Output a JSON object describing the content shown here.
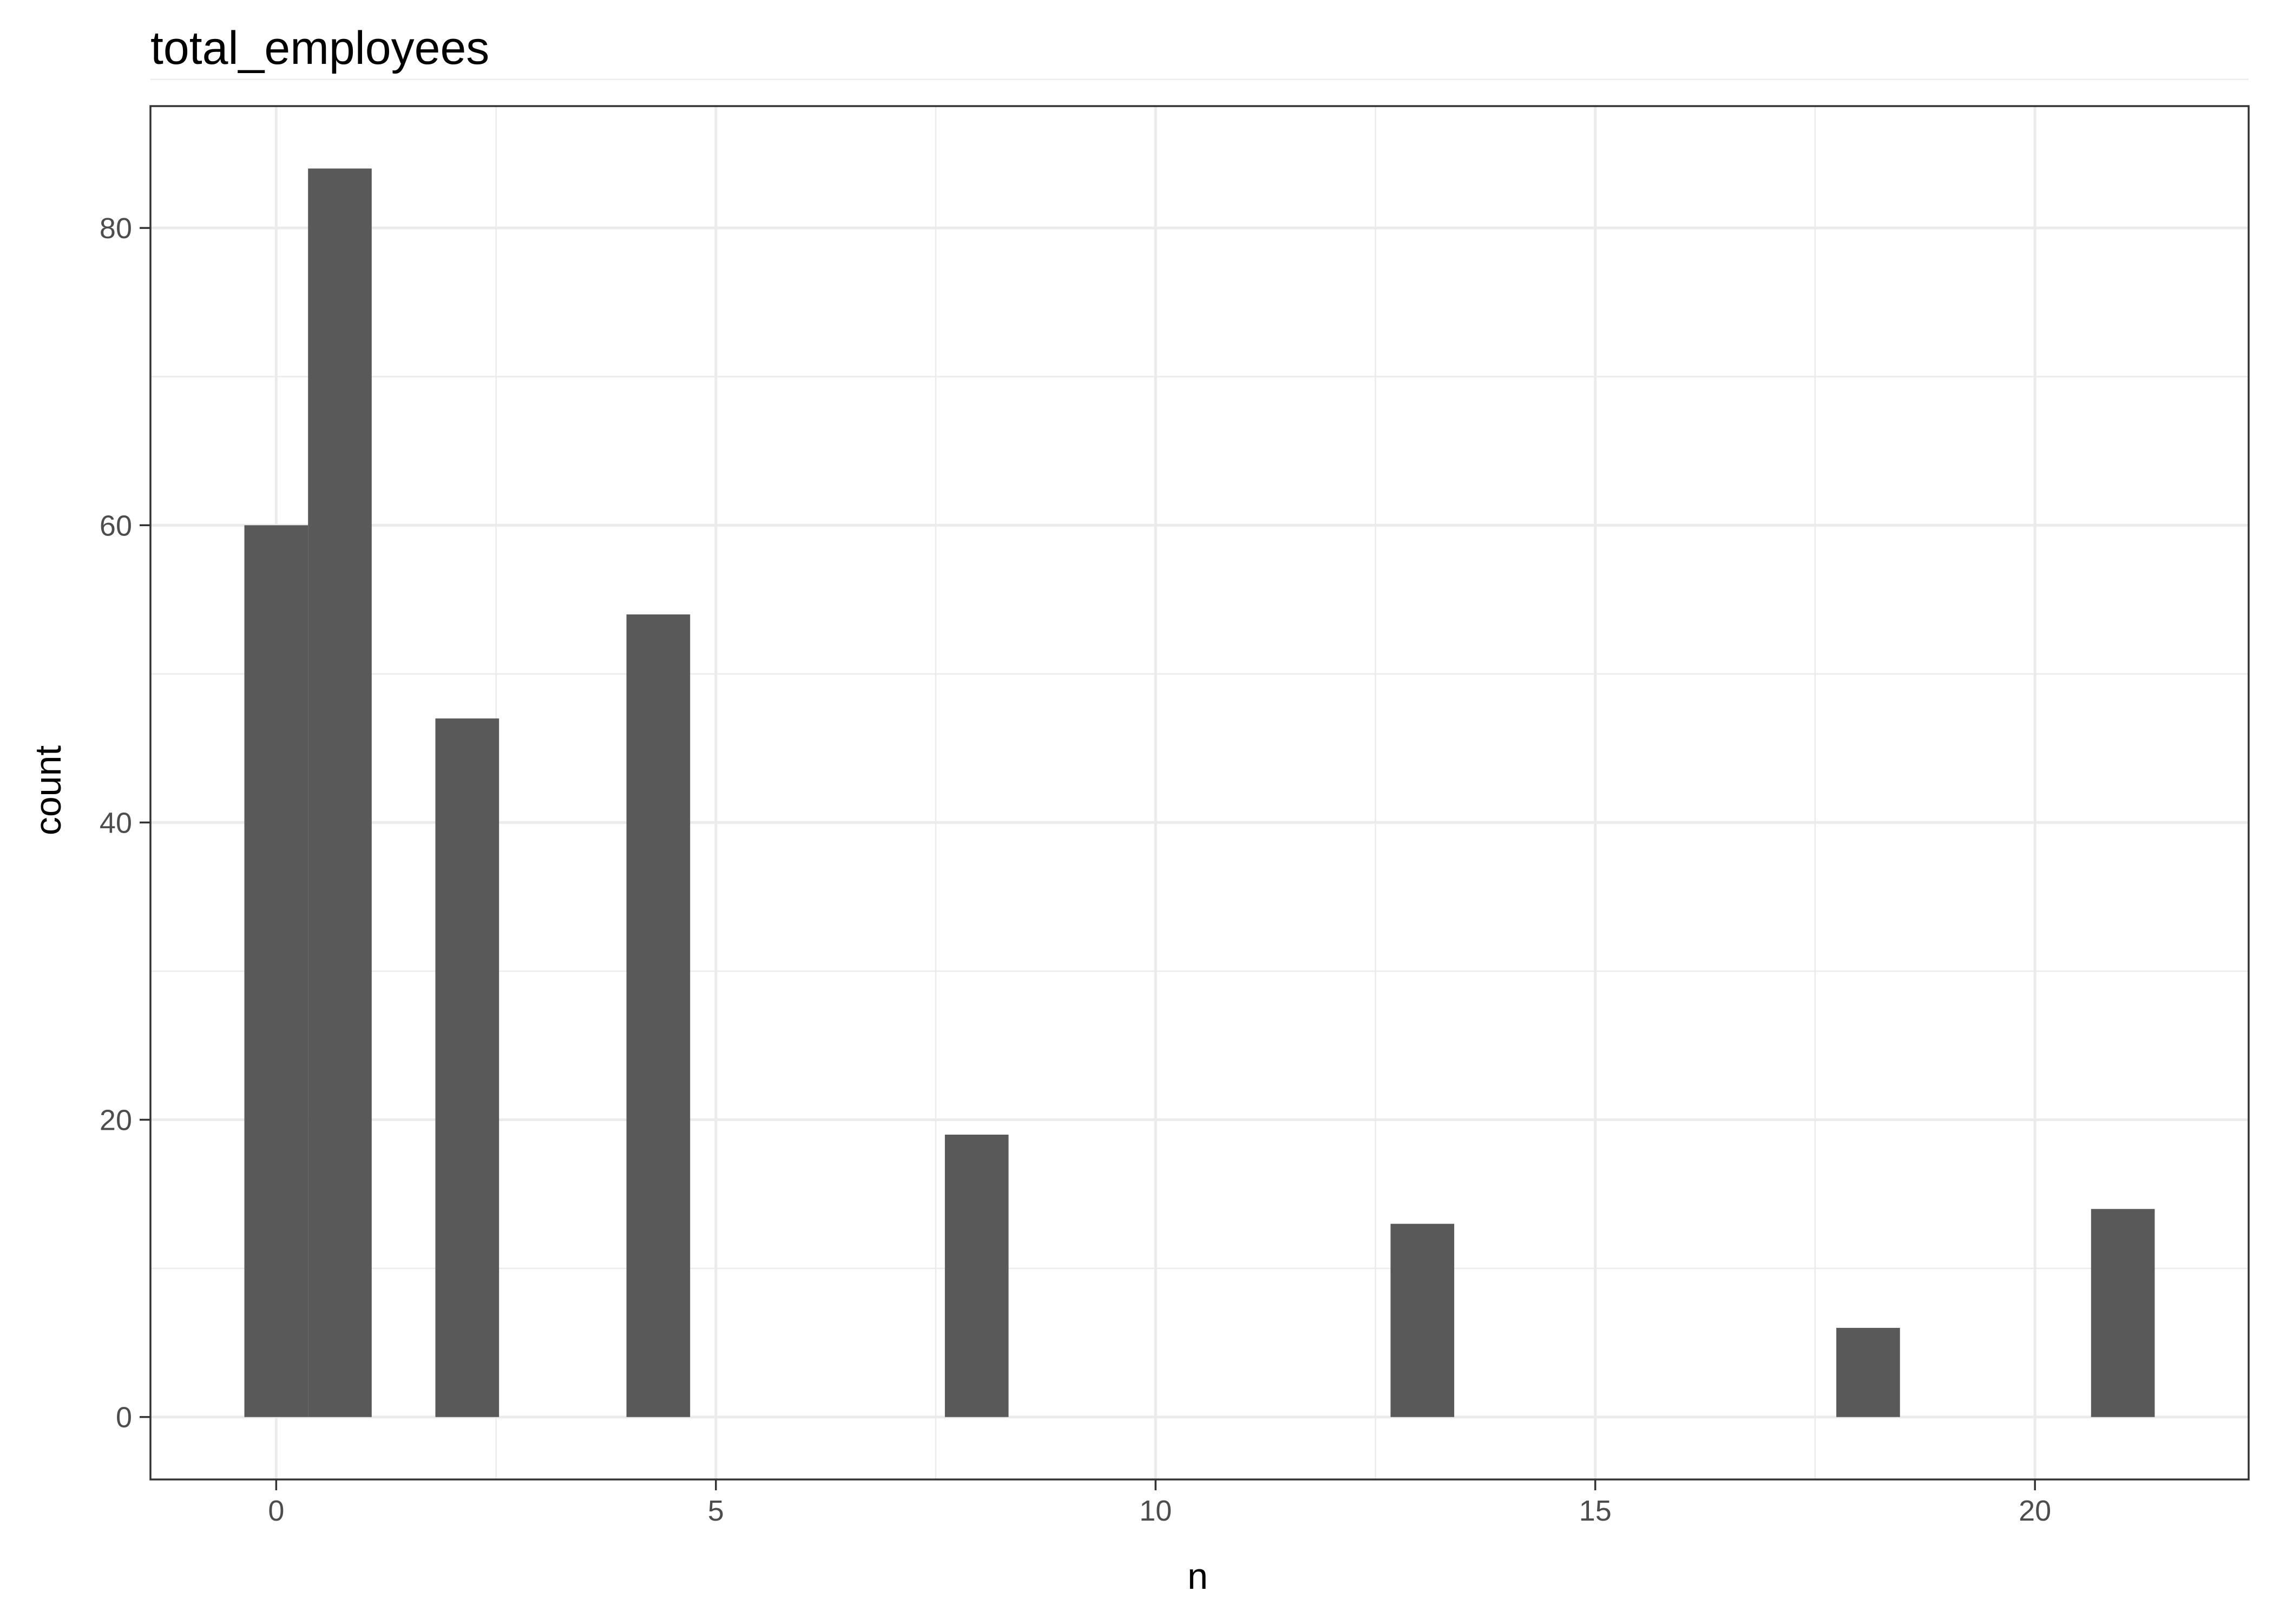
{
  "chart_data": {
    "type": "bar",
    "title": "total_employees",
    "xlabel": "n",
    "ylabel": "count",
    "xlim": [
      -1.43,
      22.43
    ],
    "ylim": [
      -4.2,
      88.2
    ],
    "x_ticks": [
      0,
      5,
      10,
      15,
      20
    ],
    "y_ticks": [
      0,
      20,
      40,
      60,
      80
    ],
    "x_tick_labels": [
      "0",
      "5",
      "10",
      "15",
      "20"
    ],
    "y_tick_labels": [
      "0",
      "20",
      "40",
      "60",
      "80"
    ],
    "bin_width": 0.724,
    "bins": [
      {
        "x": 0,
        "count": 60
      },
      {
        "x": 0.724,
        "count": 84
      },
      {
        "x": 2.172,
        "count": 47
      },
      {
        "x": 4.345,
        "count": 54
      },
      {
        "x": 7.966,
        "count": 19
      },
      {
        "x": 13.034,
        "count": 13
      },
      {
        "x": 18.103,
        "count": 6
      },
      {
        "x": 21,
        "count": 14
      }
    ],
    "bar_color": "#595959",
    "grid": true,
    "panel_border": "#333333",
    "grid_color": "#ebebeb"
  }
}
